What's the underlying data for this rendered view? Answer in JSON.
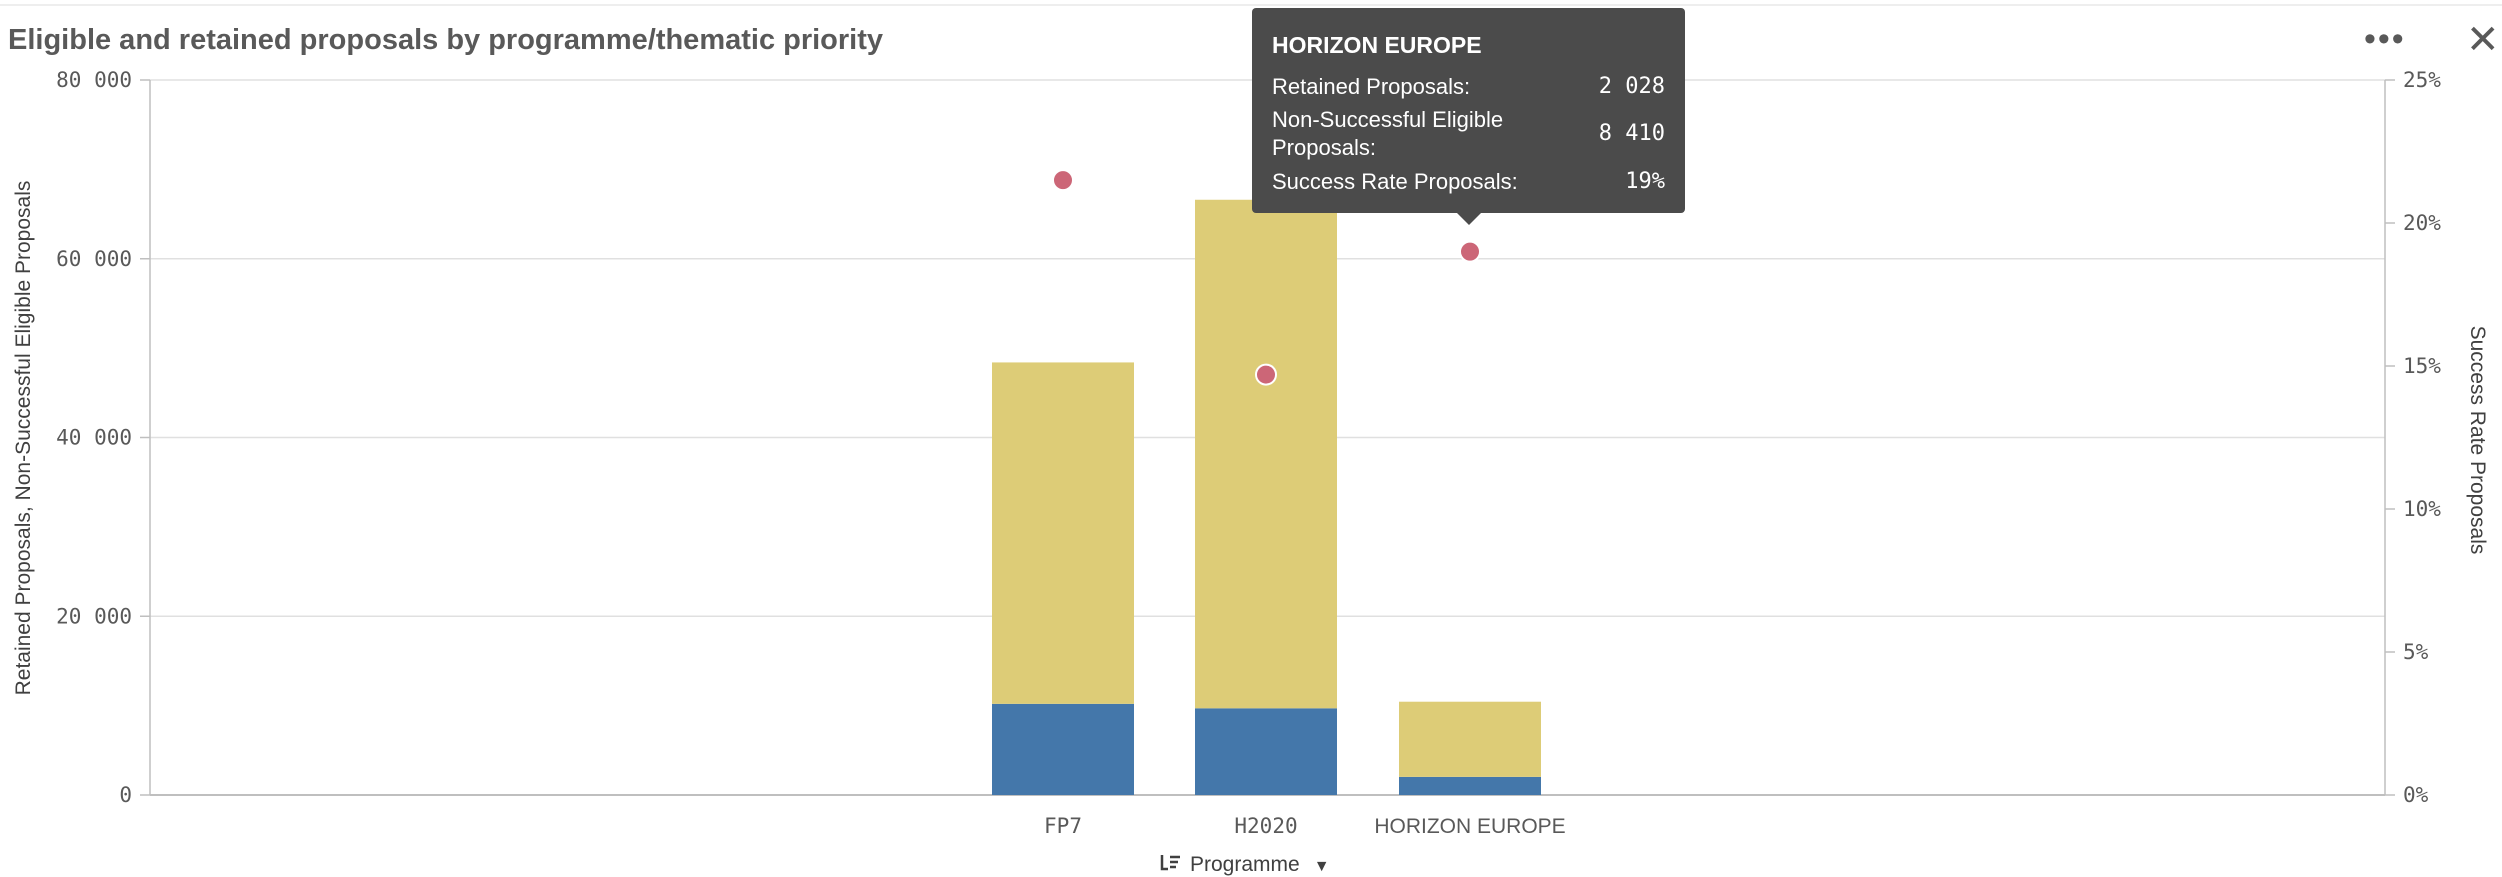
{
  "title": "Eligible and retained proposals by programme/thematic priority",
  "toolbar": {
    "more_label": "•••",
    "close_label": "✕"
  },
  "chart_data": {
    "type": "bar",
    "stacked": true,
    "categories": [
      "FP7",
      "H2020",
      "HORIZON EUROPE"
    ],
    "series": [
      {
        "name": "Retained Proposals",
        "axis": "left",
        "color": "#4477aa",
        "values": [
          10200,
          9700,
          2028
        ]
      },
      {
        "name": "Non-Successful Eligible Proposals",
        "axis": "left",
        "color": "#ddcc77",
        "values": [
          38200,
          56900,
          8410
        ]
      },
      {
        "name": "Success Rate Proposals",
        "axis": "right",
        "type": "scatter",
        "color": "#cc6677",
        "values": [
          21.5,
          14.7,
          19
        ]
      }
    ],
    "ylabel": "Retained Proposals, Non-Successful Eligible Proposals",
    "y2label": "Success Rate Proposals",
    "xlabel": "Programme",
    "ylim": [
      0,
      80000
    ],
    "y2lim": [
      0,
      25
    ],
    "yticks": [
      "0",
      "20 000",
      "40 000",
      "60 000",
      "80 000"
    ],
    "y2ticks": [
      "0%",
      "5%",
      "10%",
      "15%",
      "20%",
      "25%"
    ],
    "grid": true
  },
  "tooltip": {
    "title": "HORIZON EUROPE",
    "rows": [
      {
        "label": "Retained Proposals:",
        "value": "2 028"
      },
      {
        "label": "Non-Successful Eligible Proposals:",
        "value": "8 410"
      },
      {
        "label": "Success Rate Proposals:",
        "value": "19%"
      }
    ]
  },
  "dimension_control": {
    "label": "Programme"
  }
}
